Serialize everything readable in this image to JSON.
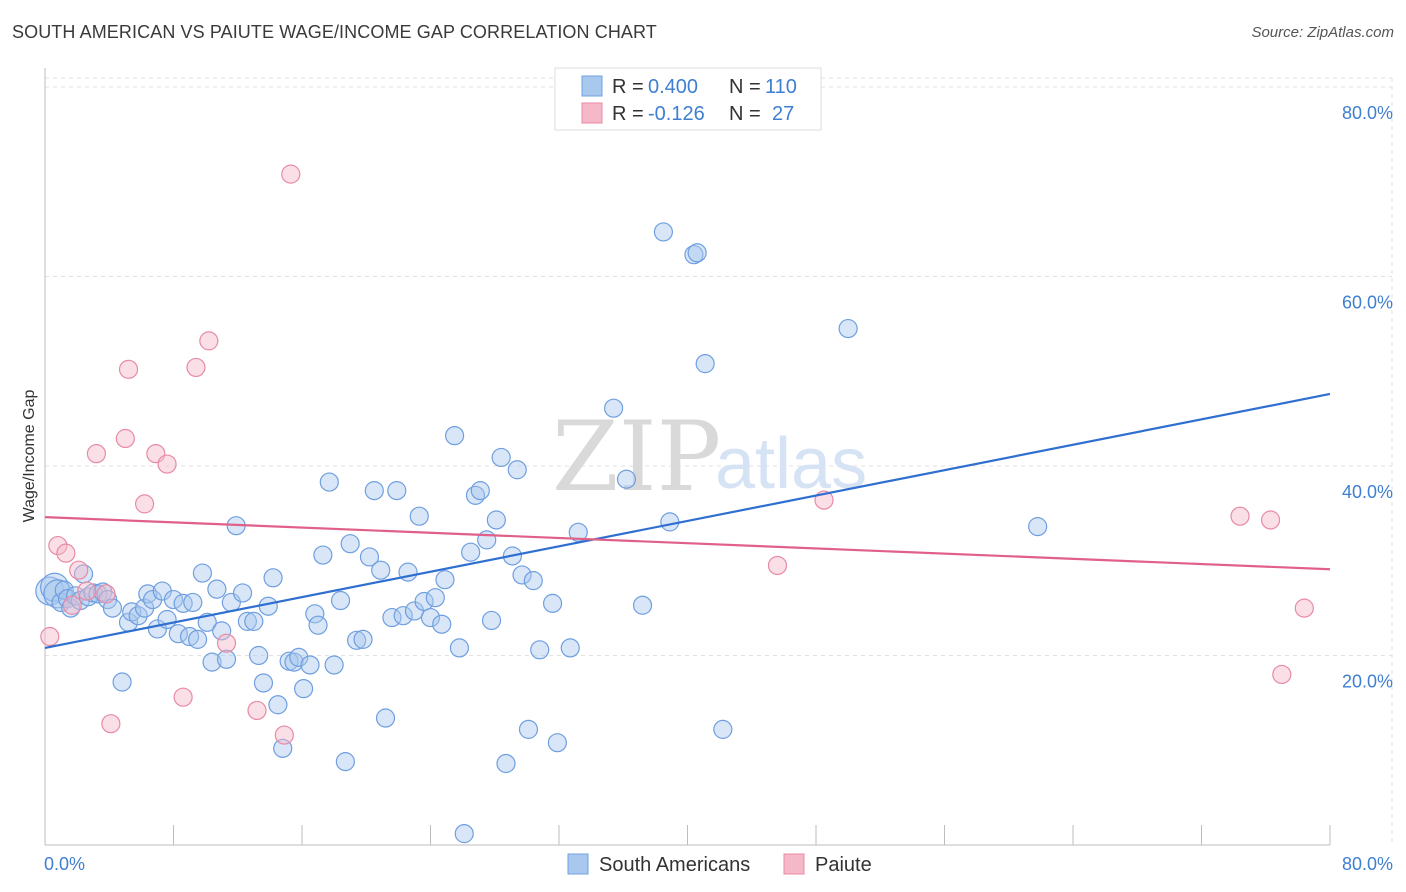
{
  "title": "SOUTH AMERICAN VS PAIUTE WAGE/INCOME GAP CORRELATION CHART",
  "source": "Source: ZipAtlas.com",
  "watermark": {
    "zip": "ZIP",
    "atlas": "atlas"
  },
  "legend_top": [
    {
      "r_label": "R = ",
      "r_value": "0.400",
      "n_label": "N = ",
      "n_value": "110",
      "color": "#a9c8ee"
    },
    {
      "r_label": "R = ",
      "r_value": "-0.126",
      "n_label": "N = ",
      "n_value": "27",
      "color": "#f5b8c8"
    }
  ],
  "chart_data": {
    "type": "scatter",
    "title": "SOUTH AMERICAN VS PAIUTE WAGE/INCOME GAP CORRELATION CHART",
    "xlabel": "",
    "ylabel": "Wage/Income Gap",
    "xlim": [
      0,
      80
    ],
    "ylim": [
      0,
      82
    ],
    "x_tick_labels": [
      "0.0%",
      "80.0%"
    ],
    "y_ticks": [
      20,
      40,
      60,
      80
    ],
    "y_tick_labels": [
      "20.0%",
      "40.0%",
      "60.0%",
      "80.0%"
    ],
    "series": [
      {
        "name": "South Americans",
        "color": "#6f9fe0",
        "fill": "#a9c8ee",
        "line_color": "#2f6fd0",
        "trend": [
          [
            0,
            20.8
          ],
          [
            80,
            47.6
          ]
        ],
        "points": [
          [
            0.3,
            26.8
          ],
          [
            0.6,
            27.2
          ],
          [
            0.8,
            26.5
          ],
          [
            1.0,
            25.6
          ],
          [
            1.2,
            26.9
          ],
          [
            1.4,
            26.0
          ],
          [
            1.6,
            25.0
          ],
          [
            1.9,
            26.3
          ],
          [
            2.2,
            25.8
          ],
          [
            2.4,
            28.6
          ],
          [
            2.7,
            26.2
          ],
          [
            3.0,
            26.6
          ],
          [
            3.3,
            26.5
          ],
          [
            3.6,
            26.7
          ],
          [
            3.9,
            25.9
          ],
          [
            4.2,
            25.0
          ],
          [
            4.8,
            17.2
          ],
          [
            5.2,
            23.5
          ],
          [
            5.4,
            24.6
          ],
          [
            5.8,
            24.2
          ],
          [
            6.2,
            25.0
          ],
          [
            6.4,
            26.5
          ],
          [
            6.7,
            25.9
          ],
          [
            7.0,
            22.8
          ],
          [
            7.3,
            26.8
          ],
          [
            7.6,
            23.8
          ],
          [
            8.0,
            25.9
          ],
          [
            8.3,
            22.3
          ],
          [
            8.6,
            25.5
          ],
          [
            9.0,
            22.0
          ],
          [
            9.2,
            25.6
          ],
          [
            9.5,
            21.7
          ],
          [
            9.8,
            28.7
          ],
          [
            10.1,
            23.5
          ],
          [
            10.4,
            19.3
          ],
          [
            10.7,
            27.0
          ],
          [
            11.0,
            22.6
          ],
          [
            11.3,
            19.6
          ],
          [
            11.6,
            25.6
          ],
          [
            11.9,
            33.7
          ],
          [
            12.3,
            26.6
          ],
          [
            12.6,
            23.6
          ],
          [
            13.0,
            23.6
          ],
          [
            13.3,
            20.0
          ],
          [
            13.6,
            17.1
          ],
          [
            13.9,
            25.2
          ],
          [
            14.2,
            28.2
          ],
          [
            14.5,
            14.8
          ],
          [
            14.8,
            10.2
          ],
          [
            15.2,
            19.4
          ],
          [
            15.5,
            19.3
          ],
          [
            15.8,
            19.8
          ],
          [
            16.1,
            16.5
          ],
          [
            16.5,
            19.0
          ],
          [
            16.8,
            24.4
          ],
          [
            17.0,
            23.2
          ],
          [
            17.3,
            30.6
          ],
          [
            17.7,
            38.3
          ],
          [
            18.0,
            19.0
          ],
          [
            18.4,
            25.8
          ],
          [
            18.7,
            8.8
          ],
          [
            19.0,
            31.8
          ],
          [
            19.4,
            21.6
          ],
          [
            19.8,
            21.7
          ],
          [
            20.2,
            30.4
          ],
          [
            20.5,
            37.4
          ],
          [
            20.9,
            29.0
          ],
          [
            21.2,
            13.4
          ],
          [
            21.6,
            24.0
          ],
          [
            21.9,
            37.4
          ],
          [
            22.3,
            24.2
          ],
          [
            22.6,
            28.8
          ],
          [
            23.0,
            24.7
          ],
          [
            23.3,
            34.7
          ],
          [
            23.6,
            25.7
          ],
          [
            24.0,
            24.0
          ],
          [
            24.3,
            26.1
          ],
          [
            24.7,
            23.3
          ],
          [
            24.9,
            28.0
          ],
          [
            25.5,
            43.2
          ],
          [
            25.8,
            20.8
          ],
          [
            26.1,
            1.2
          ],
          [
            26.5,
            30.9
          ],
          [
            26.8,
            36.9
          ],
          [
            27.1,
            37.4
          ],
          [
            27.5,
            32.2
          ],
          [
            27.8,
            23.7
          ],
          [
            28.1,
            34.3
          ],
          [
            28.4,
            40.9
          ],
          [
            28.7,
            8.6
          ],
          [
            29.1,
            30.5
          ],
          [
            29.4,
            39.6
          ],
          [
            29.7,
            28.5
          ],
          [
            30.1,
            12.2
          ],
          [
            30.4,
            27.9
          ],
          [
            30.8,
            20.6
          ],
          [
            31.6,
            25.5
          ],
          [
            31.9,
            10.8
          ],
          [
            32.7,
            20.8
          ],
          [
            33.2,
            33.0
          ],
          [
            35.4,
            46.1
          ],
          [
            36.2,
            38.6
          ],
          [
            37.2,
            25.3
          ],
          [
            38.5,
            64.7
          ],
          [
            38.9,
            34.1
          ],
          [
            40.4,
            62.3
          ],
          [
            40.6,
            62.5
          ],
          [
            41.1,
            50.8
          ],
          [
            42.2,
            12.2
          ],
          [
            50.0,
            54.5
          ],
          [
            61.8,
            33.6
          ]
        ]
      },
      {
        "name": "Paiute",
        "color": "#e88aa6",
        "fill": "#f5b8c8",
        "line_color": "#e0608a",
        "trend": [
          [
            0,
            34.6
          ],
          [
            80,
            29.1
          ]
        ],
        "points": [
          [
            0.3,
            22.0
          ],
          [
            0.8,
            31.6
          ],
          [
            1.3,
            30.8
          ],
          [
            1.7,
            25.3
          ],
          [
            2.1,
            29.0
          ],
          [
            2.6,
            26.8
          ],
          [
            3.2,
            41.3
          ],
          [
            3.8,
            26.5
          ],
          [
            4.1,
            12.8
          ],
          [
            5.0,
            42.9
          ],
          [
            5.2,
            50.2
          ],
          [
            6.2,
            36.0
          ],
          [
            6.9,
            41.3
          ],
          [
            7.6,
            40.2
          ],
          [
            8.6,
            15.6
          ],
          [
            9.4,
            50.4
          ],
          [
            10.2,
            53.2
          ],
          [
            11.3,
            21.3
          ],
          [
            13.2,
            14.2
          ],
          [
            14.9,
            11.6
          ],
          [
            15.3,
            70.8
          ],
          [
            45.6,
            29.5
          ],
          [
            48.5,
            36.4
          ],
          [
            74.4,
            34.7
          ],
          [
            76.3,
            34.3
          ],
          [
            77.0,
            18.0
          ],
          [
            78.4,
            25.0
          ]
        ]
      }
    ]
  },
  "legend_bottom": [
    {
      "label": "South Americans",
      "color": "#a9c8ee"
    },
    {
      "label": "Paiute",
      "color": "#f5b8c8"
    }
  ]
}
